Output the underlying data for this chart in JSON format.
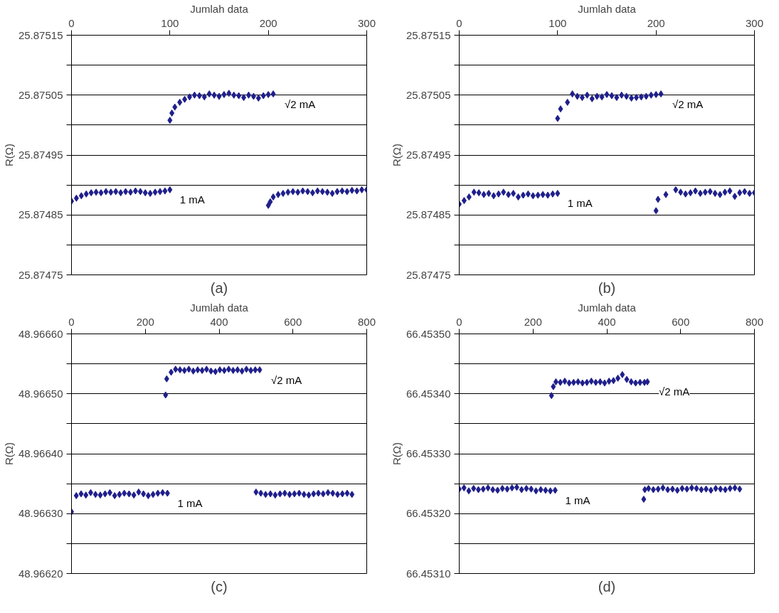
{
  "chart_data": [
    {
      "type": "scatter",
      "title": "(a)",
      "xlabel": "Jumlah data",
      "ylabel": "R(Ω)",
      "marker": "diamond",
      "grid": "y",
      "xlim": [
        0,
        300
      ],
      "xticks": [
        0,
        100,
        200,
        300
      ],
      "ylim": [
        25.87475,
        25.87515
      ],
      "yticks": [
        {
          "value": 25.87475,
          "label": "25.87475"
        },
        {
          "value": 25.8748,
          "label": null
        },
        {
          "value": 25.87485,
          "label": "25.87485"
        },
        {
          "value": 25.8749,
          "label": null
        },
        {
          "value": 25.87495,
          "label": "25.87495"
        },
        {
          "value": 25.875,
          "label": null
        },
        {
          "value": 25.87505,
          "label": "25.87505"
        },
        {
          "value": 25.8751,
          "label": null
        },
        {
          "value": 25.87515,
          "label": "25.87515"
        }
      ],
      "series": [
        {
          "name": "1 mA",
          "color": "#1f1f8c",
          "x": [
            0,
            5,
            10,
            15,
            20,
            25,
            30,
            35,
            40,
            45,
            50,
            55,
            60,
            65,
            70,
            75,
            80,
            85,
            90,
            95,
            100,
            200,
            202,
            205,
            210,
            215,
            220,
            225,
            230,
            235,
            240,
            245,
            250,
            255,
            260,
            265,
            270,
            275,
            280,
            285,
            290,
            295,
            300
          ],
          "values": [
            25.874873,
            25.874878,
            25.874882,
            25.874885,
            25.874887,
            25.874888,
            25.874887,
            25.874889,
            25.874888,
            25.874889,
            25.874887,
            25.874889,
            25.874888,
            25.87489,
            25.874889,
            25.874887,
            25.874886,
            25.874888,
            25.874889,
            25.87489,
            25.874892,
            25.874866,
            25.874872,
            25.87488,
            25.874884,
            25.874886,
            25.874888,
            25.874889,
            25.874888,
            25.87489,
            25.874889,
            25.874887,
            25.87489,
            25.874889,
            25.874888,
            25.874886,
            25.874889,
            25.87489,
            25.874889,
            25.874891,
            25.87489,
            25.874892,
            25.874892
          ]
        },
        {
          "name": "√2 mA",
          "color": "#1f1f8c",
          "x": [
            100,
            102,
            105,
            110,
            115,
            120,
            125,
            130,
            135,
            140,
            145,
            150,
            155,
            160,
            165,
            170,
            175,
            180,
            185,
            190,
            195,
            200,
            205
          ],
          "values": [
            25.875008,
            25.87502,
            25.87503,
            25.875038,
            25.875043,
            25.875047,
            25.87505,
            25.875049,
            25.875047,
            25.875052,
            25.87505,
            25.875048,
            25.875051,
            25.875053,
            25.87505,
            25.875049,
            25.875046,
            25.87505,
            25.875048,
            25.875045,
            25.875049,
            25.875051,
            25.875052
          ]
        }
      ]
    },
    {
      "type": "scatter",
      "title": "(b)",
      "xlabel": "Jumlah data",
      "ylabel": "R(Ω)",
      "marker": "diamond",
      "grid": "y",
      "xlim": [
        0,
        300
      ],
      "xticks": [
        0,
        100,
        200,
        300
      ],
      "ylim": [
        25.87475,
        25.87515
      ],
      "yticks": [
        {
          "value": 25.87475,
          "label": "25.87475"
        },
        {
          "value": 25.8748,
          "label": null
        },
        {
          "value": 25.87485,
          "label": "25.87485"
        },
        {
          "value": 25.8749,
          "label": null
        },
        {
          "value": 25.87495,
          "label": "25.87495"
        },
        {
          "value": 25.875,
          "label": null
        },
        {
          "value": 25.87505,
          "label": "25.87505"
        },
        {
          "value": 25.8751,
          "label": null
        },
        {
          "value": 25.87515,
          "label": "25.87515"
        }
      ],
      "series": [
        {
          "name": "1 mA",
          "color": "#1f1f8c",
          "x": [
            0,
            5,
            10,
            15,
            20,
            25,
            30,
            35,
            40,
            45,
            50,
            55,
            60,
            65,
            70,
            75,
            80,
            85,
            90,
            95,
            100,
            200,
            202,
            210,
            220,
            225,
            230,
            235,
            240,
            245,
            250,
            255,
            260,
            265,
            270,
            275,
            280,
            285,
            290,
            295,
            300
          ],
          "values": [
            25.874868,
            25.874874,
            25.87488,
            25.874888,
            25.874887,
            25.874884,
            25.874886,
            25.874882,
            25.874885,
            25.874888,
            25.874884,
            25.874886,
            25.87488,
            25.874883,
            25.874885,
            25.874882,
            25.874883,
            25.874884,
            25.874883,
            25.874885,
            25.874886,
            25.874857,
            25.874876,
            25.874884,
            25.874892,
            25.874888,
            25.874885,
            25.874887,
            25.87489,
            25.874886,
            25.874888,
            25.874889,
            25.874886,
            25.874884,
            25.874888,
            25.87489,
            25.874881,
            25.874887,
            25.874889,
            25.874886,
            25.874887
          ]
        },
        {
          "name": "√2 mA",
          "color": "#1f1f8c",
          "x": [
            100,
            103,
            110,
            115,
            120,
            125,
            130,
            135,
            140,
            145,
            150,
            155,
            160,
            165,
            170,
            175,
            180,
            185,
            190,
            195,
            200,
            205
          ],
          "values": [
            25.875011,
            25.875027,
            25.875038,
            25.875052,
            25.875048,
            25.875046,
            25.87505,
            25.875044,
            25.875048,
            25.875047,
            25.875051,
            25.875049,
            25.875046,
            25.87505,
            25.875048,
            25.875045,
            25.875046,
            25.875047,
            25.875048,
            25.87505,
            25.875051,
            25.875052
          ]
        }
      ]
    },
    {
      "type": "scatter",
      "title": "(c)",
      "xlabel": "Jumlah data",
      "ylabel": "R(Ω)",
      "marker": "diamond",
      "grid": "y",
      "xlim": [
        0,
        800
      ],
      "xticks": [
        0,
        200,
        400,
        600,
        800
      ],
      "ylim": [
        48.9662,
        48.9666
      ],
      "yticks": [
        {
          "value": 48.9662,
          "label": "48.96620"
        },
        {
          "value": 48.96625,
          "label": null
        },
        {
          "value": 48.9663,
          "label": "48.96630"
        },
        {
          "value": 48.96635,
          "label": null
        },
        {
          "value": 48.9664,
          "label": "48.96640"
        },
        {
          "value": 48.96645,
          "label": null
        },
        {
          "value": 48.9665,
          "label": "48.96650"
        },
        {
          "value": 48.96655,
          "label": null
        },
        {
          "value": 48.9666,
          "label": "48.96660"
        }
      ],
      "series": [
        {
          "name": "1 mA",
          "color": "#1f1f8c",
          "x": [
            0,
            13,
            26,
            39,
            52,
            65,
            78,
            91,
            104,
            117,
            130,
            143,
            156,
            169,
            182,
            195,
            208,
            221,
            234,
            247,
            260,
            500,
            513,
            526,
            539,
            552,
            565,
            578,
            591,
            604,
            617,
            630,
            643,
            656,
            669,
            682,
            695,
            708,
            721,
            734,
            747,
            760
          ],
          "values": [
            48.966303,
            48.96633,
            48.966333,
            48.966331,
            48.966335,
            48.966332,
            48.966331,
            48.966333,
            48.966335,
            48.96633,
            48.966332,
            48.966334,
            48.966333,
            48.966331,
            48.966336,
            48.966333,
            48.96633,
            48.966332,
            48.966334,
            48.966335,
            48.966334,
            48.966336,
            48.966334,
            48.966332,
            48.966333,
            48.966331,
            48.966333,
            48.966334,
            48.966332,
            48.966333,
            48.966334,
            48.966332,
            48.966331,
            48.966333,
            48.966334,
            48.966333,
            48.966335,
            48.966334,
            48.966332,
            48.966333,
            48.966334,
            48.966332
          ]
        },
        {
          "name": "√2 mA",
          "color": "#1f1f8c",
          "x": [
            255,
            258,
            270,
            282,
            294,
            306,
            318,
            330,
            342,
            354,
            366,
            378,
            390,
            402,
            414,
            426,
            438,
            450,
            462,
            474,
            486,
            498,
            510
          ],
          "values": [
            48.966498,
            48.966525,
            48.966536,
            48.966541,
            48.96654,
            48.966539,
            48.966541,
            48.966538,
            48.96654,
            48.966539,
            48.966541,
            48.966538,
            48.966537,
            48.96654,
            48.966539,
            48.966541,
            48.966539,
            48.96654,
            48.966538,
            48.966541,
            48.966539,
            48.96654,
            48.96654
          ]
        }
      ]
    },
    {
      "type": "scatter",
      "title": "(d)",
      "xlabel": "Jumlah data",
      "ylabel": "R(Ω)",
      "marker": "diamond",
      "grid": "y",
      "xlim": [
        0,
        800
      ],
      "xticks": [
        0,
        200,
        400,
        600,
        800
      ],
      "ylim": [
        66.4531,
        66.4535
      ],
      "yticks": [
        {
          "value": 66.4531,
          "label": "66.45310"
        },
        {
          "value": 66.45315,
          "label": null
        },
        {
          "value": 66.4532,
          "label": "66.45320"
        },
        {
          "value": 66.45325,
          "label": null
        },
        {
          "value": 66.4533,
          "label": "66.45330"
        },
        {
          "value": 66.45335,
          "label": null
        },
        {
          "value": 66.4534,
          "label": "66.45340"
        },
        {
          "value": 66.45345,
          "label": null
        },
        {
          "value": 66.4535,
          "label": "66.45350"
        }
      ],
      "series": [
        {
          "name": "1 mA",
          "color": "#1f1f8c",
          "x": [
            0,
            13,
            26,
            39,
            52,
            65,
            78,
            91,
            104,
            117,
            130,
            143,
            156,
            169,
            182,
            195,
            208,
            221,
            234,
            247,
            260,
            500,
            503,
            513,
            526,
            539,
            552,
            565,
            578,
            591,
            604,
            617,
            630,
            643,
            656,
            669,
            682,
            695,
            708,
            721,
            734,
            747,
            760
          ],
          "values": [
            66.453241,
            66.453243,
            66.453238,
            66.453242,
            66.45324,
            66.453241,
            66.453243,
            66.45324,
            66.453239,
            66.453242,
            66.453241,
            66.453243,
            66.453244,
            66.45324,
            66.453242,
            66.453241,
            66.453238,
            66.45324,
            66.453239,
            66.453238,
            66.453239,
            66.453224,
            66.45324,
            66.453242,
            66.45324,
            66.453241,
            66.453243,
            66.45324,
            66.453241,
            66.453239,
            66.453242,
            66.453241,
            66.453243,
            66.453242,
            66.45324,
            66.453241,
            66.453239,
            66.453242,
            66.453241,
            66.45324,
            66.453242,
            66.453243,
            66.453241
          ]
        },
        {
          "name": "√2 mA",
          "color": "#1f1f8c",
          "x": [
            250,
            255,
            262,
            274,
            286,
            298,
            310,
            322,
            334,
            346,
            358,
            370,
            382,
            394,
            406,
            418,
            430,
            442,
            454,
            466,
            478,
            490,
            502,
            510
          ],
          "values": [
            66.453397,
            66.453412,
            66.45342,
            66.453419,
            66.453421,
            66.453418,
            66.453419,
            66.45342,
            66.453418,
            66.453419,
            66.453421,
            66.453419,
            66.45342,
            66.453418,
            66.453421,
            66.453422,
            66.453426,
            66.453432,
            66.453424,
            66.45342,
            66.453418,
            66.453419,
            66.453419,
            66.45342
          ]
        }
      ]
    }
  ]
}
